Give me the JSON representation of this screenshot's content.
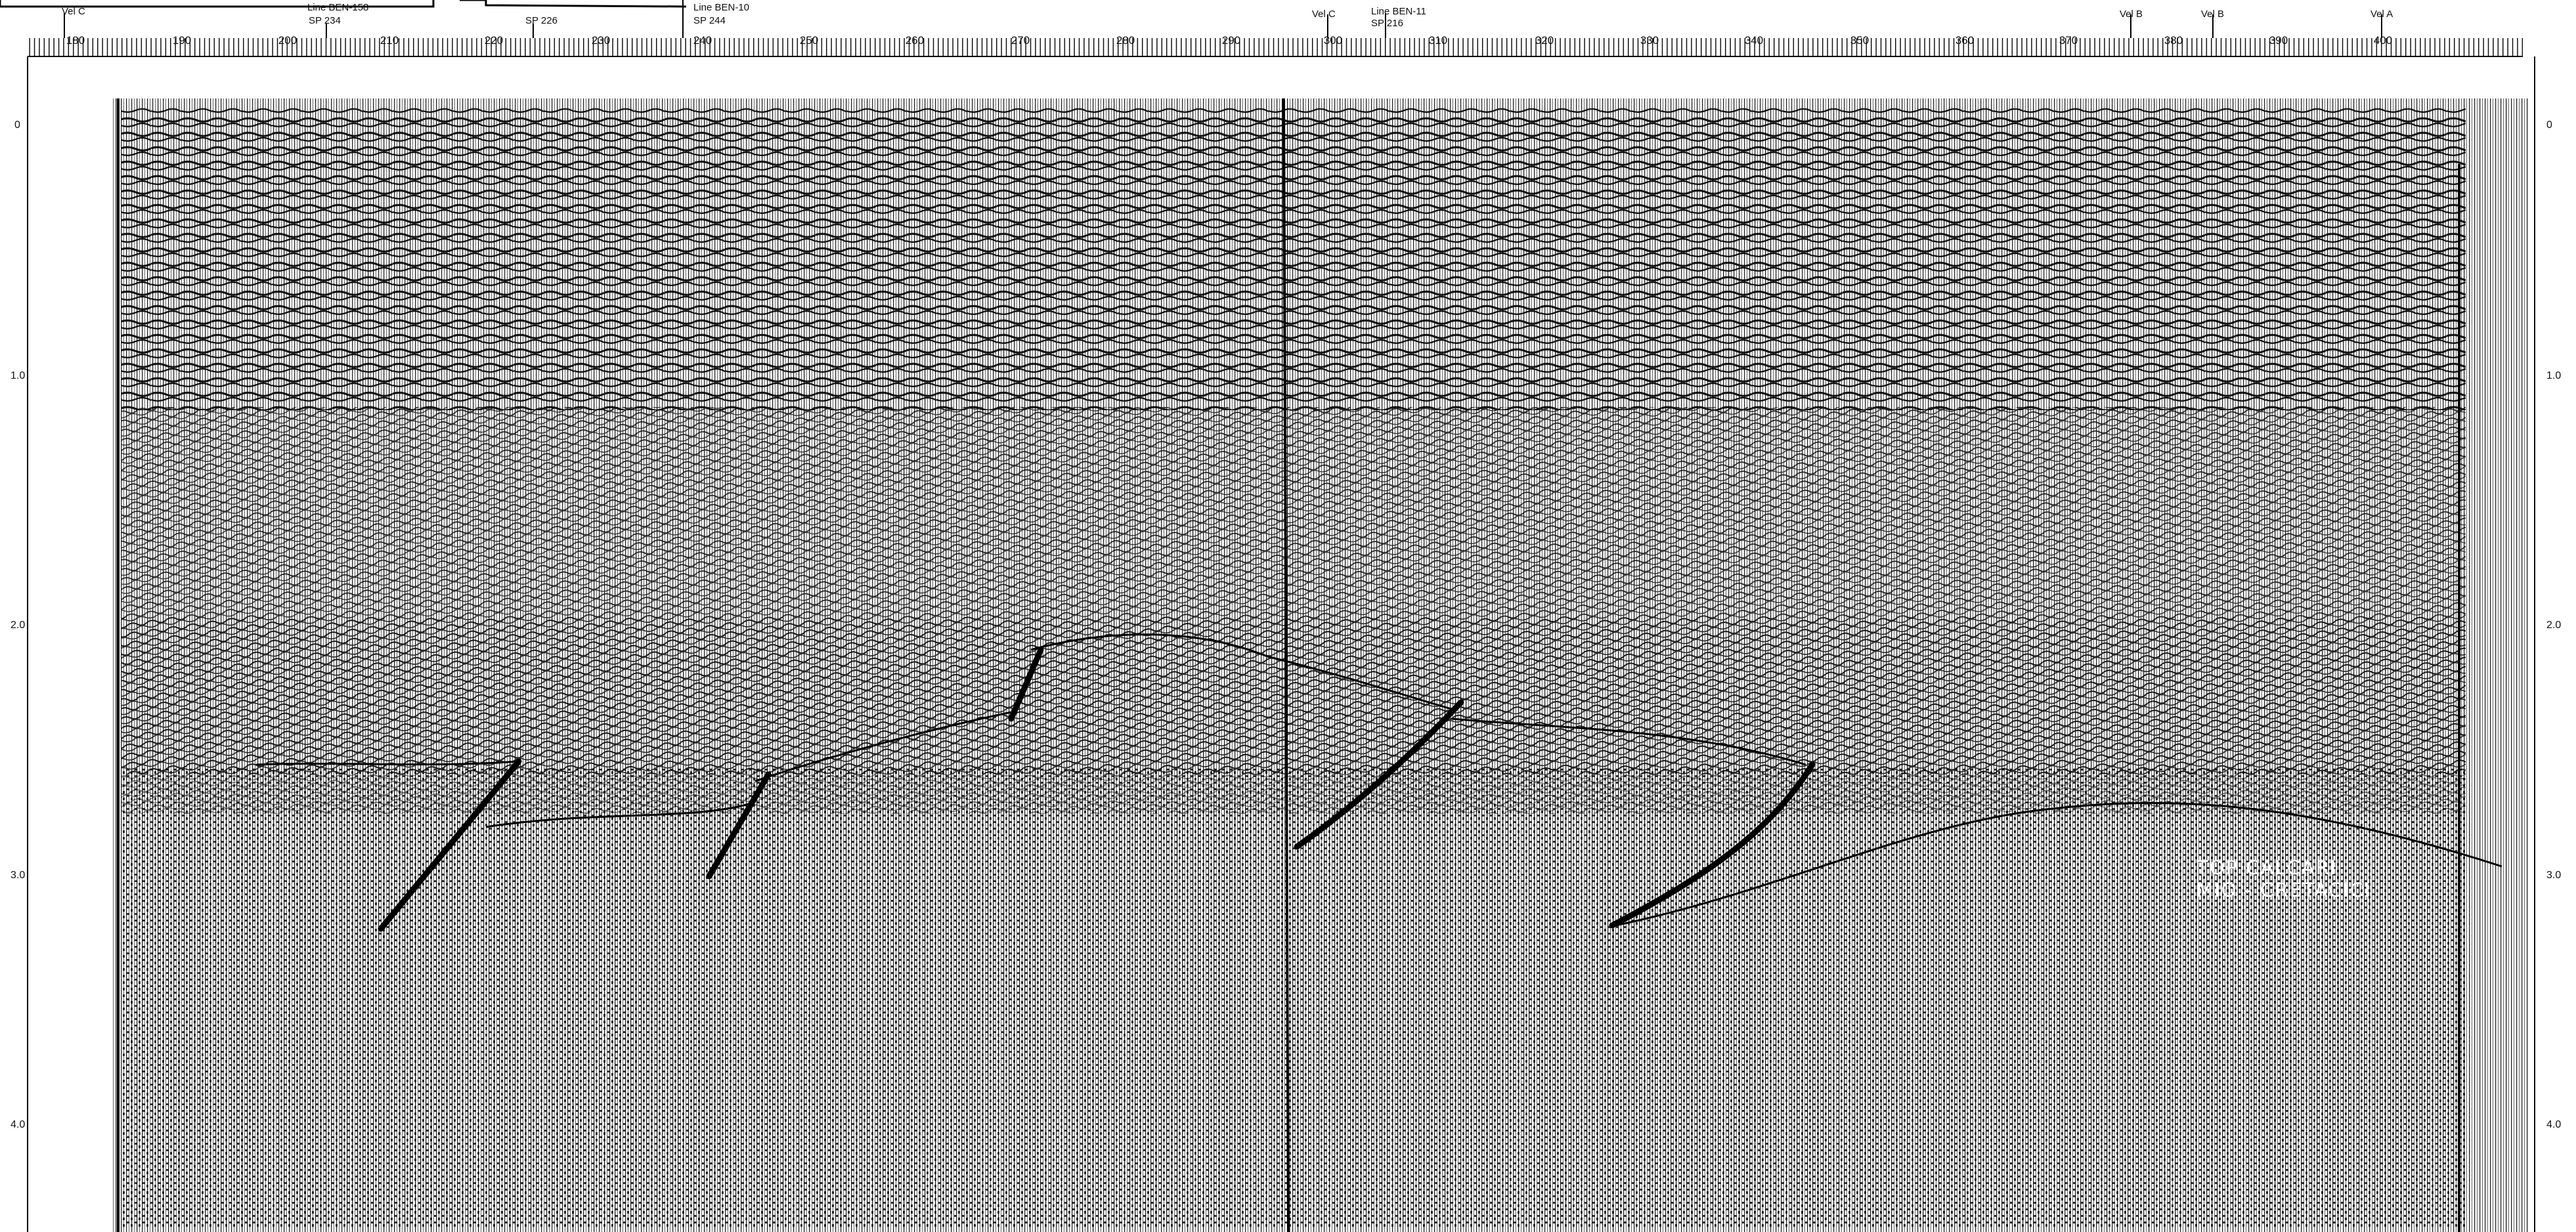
{
  "header_labels": {
    "vel_c_left": "Vel C",
    "ben158_line": "Line BEN-158",
    "ben158_sp": "SP 234",
    "ben_sp226": "SP 226",
    "ben10_line": "Line BEN-10",
    "ben10_sp": "SP 244",
    "vel_c_mid": "Vel C",
    "ben11_line": "Line BEN-11",
    "ben11_sp": "SP 216",
    "vel_b_1": "Vel B",
    "vel_b_2": "Vel B",
    "vel_a": "Vel A"
  },
  "shotpoint_numbers": [
    "180",
    "190",
    "200",
    "210",
    "220",
    "230",
    "240",
    "250",
    "260",
    "270",
    "280",
    "290",
    "300",
    "310",
    "320",
    "330",
    "340",
    "350",
    "360",
    "370",
    "380",
    "390",
    "400"
  ],
  "time_axis_left": [
    "0",
    "1.0",
    "2.0",
    "3.0",
    "4.0"
  ],
  "time_axis_right": [
    "0",
    "1.0",
    "2.0",
    "3.0",
    "4.0"
  ],
  "formation_label": {
    "line1": "TOP CALCARI",
    "line2": "MIO - CRETACICI"
  },
  "colors": {
    "background": "#ffffff",
    "trace": "#111111"
  }
}
